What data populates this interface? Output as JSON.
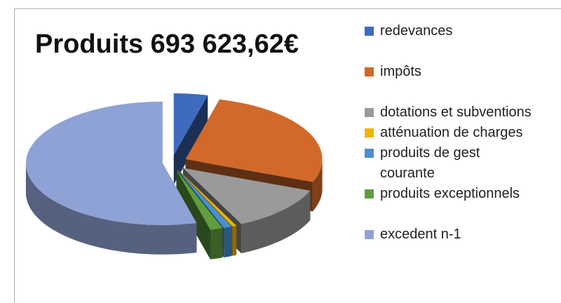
{
  "chart_data": {
    "type": "pie3d",
    "title": "Produits 693 623,62€",
    "categories": [
      "redevances",
      "impôts",
      "dotations et subventions",
      "atténuation de charges",
      "produits de gest courante",
      "produits exceptionnels",
      "excedent n-1"
    ],
    "values": [
      4,
      27,
      12,
      0.5,
      1,
      1.5,
      54
    ],
    "colors": [
      "#3f6bbf",
      "#d2692a",
      "#9a9a9a",
      "#f0b400",
      "#4a8fcf",
      "#5f9e3e",
      "#8fa2d6"
    ],
    "legend": "right"
  }
}
